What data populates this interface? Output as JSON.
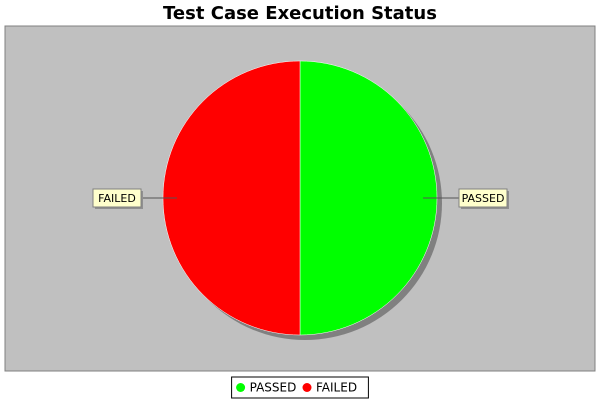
{
  "chart_data": {
    "type": "pie",
    "title": "Test Case Execution Status",
    "slices": [
      {
        "label": "PASSED",
        "value": 50,
        "color": "#00ff00"
      },
      {
        "label": "FAILED",
        "value": 50,
        "color": "#ff0000"
      }
    ],
    "legend": {
      "position": "bottom",
      "items": [
        "PASSED",
        "FAILED"
      ]
    },
    "plot_background": "#c0c0c0",
    "shadow_color": "#808080"
  }
}
